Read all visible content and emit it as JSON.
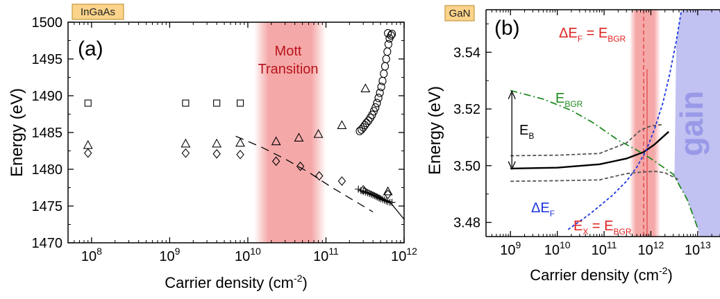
{
  "chart_data": [
    {
      "type": "scatter",
      "badge": "InGaAs",
      "panel_label": "(a)",
      "xlabel": "Carrier density (cm",
      "xlabel_sup": "-2",
      "xlabel_close": ")",
      "ylabel": "Energy (eV)",
      "x_scale": "log",
      "xlim": [
        50000000.0,
        1000000000000.0
      ],
      "ylim": [
        1470,
        1500
      ],
      "x_ticks": [
        {
          "value": 100000000.0,
          "base": "10",
          "exp": "8"
        },
        {
          "value": 1000000000.0,
          "base": "10",
          "exp": "9"
        },
        {
          "value": 10000000000.0,
          "base": "10",
          "exp": "10"
        },
        {
          "value": 100000000000.0,
          "base": "10",
          "exp": "11"
        },
        {
          "value": 1000000000000.0,
          "base": "10",
          "exp": "12"
        }
      ],
      "y_ticks": [
        1470,
        1475,
        1480,
        1485,
        1490,
        1495,
        1500
      ],
      "shaded_region": {
        "label_line1": "Mott",
        "label_line2": "Transition",
        "x_range": [
          12000000000.0,
          100000000000.0
        ],
        "color": "#f28b8b"
      },
      "series": [
        {
          "marker": "square",
          "points": [
            [
              90000000.0,
              1489
            ],
            [
              1600000000.0,
              1489
            ],
            [
              4000000000.0,
              1489
            ],
            [
              8000000000.0,
              1489
            ]
          ]
        },
        {
          "marker": "triangle",
          "points": [
            [
              90000000.0,
              1483.3
            ],
            [
              1600000000.0,
              1483.5
            ],
            [
              4000000000.0,
              1483.5
            ],
            [
              8000000000.0,
              1483.6
            ],
            [
              23000000000.0,
              1483.8
            ],
            [
              45000000000.0,
              1484.3
            ],
            [
              80000000000.0,
              1484.8
            ],
            [
              160000000000.0,
              1486
            ],
            [
              320000000000.0,
              1491
            ],
            [
              620000000000.0,
              1477
            ]
          ]
        },
        {
          "marker": "diamond",
          "points": [
            [
              90000000.0,
              1482.2
            ],
            [
              1600000000.0,
              1482.2
            ],
            [
              4000000000.0,
              1482.1
            ],
            [
              8000000000.0,
              1482
            ],
            [
              23000000000.0,
              1481.1
            ],
            [
              47000000000.0,
              1480.4
            ],
            [
              82000000000.0,
              1479.1
            ],
            [
              160000000000.0,
              1478.4
            ],
            [
              300000000000.0,
              1477.2
            ],
            [
              620000000000.0,
              1476.6
            ]
          ]
        },
        {
          "marker": "circle",
          "points": [
            [
              270000000000.0,
              1485.2
            ],
            [
              285000000000.0,
              1485.4
            ],
            [
              300000000000.0,
              1485.7
            ],
            [
              315000000000.0,
              1486
            ],
            [
              330000000000.0,
              1486.3
            ],
            [
              350000000000.0,
              1486.6
            ],
            [
              370000000000.0,
              1487
            ],
            [
              390000000000.0,
              1487.4
            ],
            [
              410000000000.0,
              1487.9
            ],
            [
              430000000000.0,
              1488.4
            ],
            [
              450000000000.0,
              1489
            ],
            [
              470000000000.0,
              1489.7
            ],
            [
              490000000000.0,
              1490.4
            ],
            [
              510000000000.0,
              1491.2
            ],
            [
              530000000000.0,
              1492
            ],
            [
              550000000000.0,
              1493
            ],
            [
              570000000000.0,
              1494
            ],
            [
              590000000000.0,
              1495
            ],
            [
              610000000000.0,
              1496
            ],
            [
              630000000000.0,
              1497
            ],
            [
              650000000000.0,
              1497.8
            ],
            [
              680000000000.0,
              1498.2
            ],
            [
              700000000000.0,
              1498.4
            ],
            [
              620000000000.0,
              1498.5
            ]
          ]
        },
        {
          "marker": "plus",
          "points": [
            [
              260000000000.0,
              1477.3
            ],
            [
              280000000000.0,
              1477.1
            ],
            [
              300000000000.0,
              1477
            ],
            [
              320000000000.0,
              1476.9
            ],
            [
              340000000000.0,
              1476.8
            ],
            [
              360000000000.0,
              1476.7
            ],
            [
              380000000000.0,
              1476.6
            ],
            [
              400000000000.0,
              1476.5
            ],
            [
              420000000000.0,
              1476.4
            ],
            [
              440000000000.0,
              1476.3
            ],
            [
              460000000000.0,
              1476.2
            ],
            [
              480000000000.0,
              1476.1
            ],
            [
              500000000000.0,
              1476
            ],
            [
              530000000000.0,
              1475.9
            ],
            [
              560000000000.0,
              1475.8
            ],
            [
              590000000000.0,
              1475.7
            ],
            [
              620000000000.0,
              1475.6
            ],
            [
              660000000000.0,
              1475.5
            ],
            [
              700000000000.0,
              1475.5
            ]
          ]
        }
      ],
      "lines": [
        {
          "style": "dashed",
          "points": [
            [
              7000000000.0,
              1484.5
            ],
            [
              15000000000.0,
              1483
            ],
            [
              30000000000.0,
              1481.4
            ],
            [
              60000000000.0,
              1479.6
            ],
            [
              120000000000.0,
              1477.5
            ],
            [
              250000000000.0,
              1475.5
            ],
            [
              400000000000.0,
              1474.2
            ]
          ]
        },
        {
          "style": "solid",
          "points": [
            [
              300000000000.0,
              1477.5
            ],
            [
              500000000000.0,
              1476.3
            ],
            [
              700000000000.0,
              1475.2
            ],
            [
              1000000000000.0,
              1473.2
            ]
          ]
        }
      ]
    },
    {
      "type": "line",
      "badge": "GaN",
      "panel_label": "(b)",
      "xlabel": "Carrier density (cm",
      "xlabel_sup": "-2",
      "xlabel_close": ")",
      "ylabel": "Energy (eV)",
      "x_scale": "log",
      "xlim": [
        300000000.0,
        30000000000000.0
      ],
      "ylim": [
        3.475,
        3.555
      ],
      "x_ticks": [
        {
          "value": 1000000000.0,
          "base": "10",
          "exp": "9"
        },
        {
          "value": 10000000000.0,
          "base": "10",
          "exp": "10"
        },
        {
          "value": 100000000000.0,
          "base": "10",
          "exp": "11"
        },
        {
          "value": 1000000000000.0,
          "base": "10",
          "exp": "12"
        },
        {
          "value": 10000000000000.0,
          "base": "10",
          "exp": "13"
        }
      ],
      "y_ticks": [
        {
          "value": 3.48,
          "label": "3.48"
        },
        {
          "value": 3.5,
          "label": "3.50"
        },
        {
          "value": 3.52,
          "label": "3.52"
        },
        {
          "value": 3.54,
          "label": "3.54"
        }
      ],
      "shaded_region": {
        "x_range": [
          350000000000.0,
          1600000000000.0
        ],
        "color": "#f28b8b"
      },
      "vline": {
        "x": 700000000000.0,
        "color": "#e03030"
      },
      "gain_region": {
        "label": "gain",
        "color": "#b6b6f0"
      },
      "annotations": {
        "delta_ef_eq": {
          "main": "ΔE",
          "sub": "F",
          "eq": " = E",
          "sub2": "BGR"
        },
        "e_bgr": {
          "main": "E",
          "sub": "BGR"
        },
        "e_b": {
          "main": "E",
          "sub": "B"
        },
        "delta_ef": {
          "main": "ΔE",
          "sub": "F"
        },
        "ex_eq": {
          "main": "E",
          "sub": "X",
          "eq": " = E",
          "sub2": "BGR"
        }
      },
      "series": [
        {
          "role": "exciton",
          "color": "#000000",
          "style": "solid",
          "points": [
            [
              1000000000.0,
              3.499
            ],
            [
              10000000000.0,
              3.4993
            ],
            [
              80000000000.0,
              3.5005
            ],
            [
              300000000000.0,
              3.5025
            ],
            [
              700000000000.0,
              3.5048
            ],
            [
              1200000000000.0,
              3.5075
            ],
            [
              2400000000000.0,
              3.512
            ]
          ]
        },
        {
          "role": "upper_bound",
          "color": "#555555",
          "style": "dashed",
          "points": [
            [
              1000000000.0,
              3.5035
            ],
            [
              10000000000.0,
              3.5037
            ],
            [
              80000000000.0,
              3.5043
            ],
            [
              300000000000.0,
              3.508
            ],
            [
              600000000000.0,
              3.5125
            ],
            [
              1000000000000.0,
              3.514
            ],
            [
              1800000000000.0,
              3.5145
            ]
          ]
        },
        {
          "role": "lower_bound",
          "color": "#555555",
          "style": "dashed",
          "points": [
            [
              1000000000.0,
              3.4945
            ],
            [
              10000000000.0,
              3.4947
            ],
            [
              80000000000.0,
              3.495
            ],
            [
              300000000000.0,
              3.4972
            ],
            [
              700000000000.0,
              3.4978
            ],
            [
              1200000000000.0,
              3.498
            ],
            [
              2000000000000.0,
              3.4975
            ],
            [
              4000000000000.0,
              3.495
            ]
          ]
        },
        {
          "role": "bgr",
          "color": "#1f8a1f",
          "style": "dashdot",
          "points": [
            [
              1000000000.0,
              3.5265
            ],
            [
              5000000000.0,
              3.5235
            ],
            [
              20000000000.0,
              3.5195
            ],
            [
              60000000000.0,
              3.515
            ],
            [
              200000000000.0,
              3.509
            ],
            [
              500000000000.0,
              3.5055
            ],
            [
              1000000000000.0,
              3.5025
            ],
            [
              3000000000000.0,
              3.497
            ],
            [
              6000000000000.0,
              3.488
            ],
            [
              10000000000000.0,
              3.478
            ]
          ]
        },
        {
          "role": "fermi",
          "color": "#1a35e0",
          "style": "dotted",
          "points": [
            [
              17000000000.0,
              3.4775
            ],
            [
              50000000000.0,
              3.483
            ],
            [
              150000000000.0,
              3.4895
            ],
            [
              300000000000.0,
              3.4945
            ],
            [
              500000000000.0,
              3.4995
            ],
            [
              800000000000.0,
              3.5055
            ],
            [
              1200000000000.0,
              3.513
            ],
            [
              1800000000000.0,
              3.522
            ],
            [
              2500000000000.0,
              3.532
            ],
            [
              3500000000000.0,
              3.544
            ],
            [
              4500000000000.0,
              3.555
            ]
          ]
        }
      ]
    }
  ]
}
